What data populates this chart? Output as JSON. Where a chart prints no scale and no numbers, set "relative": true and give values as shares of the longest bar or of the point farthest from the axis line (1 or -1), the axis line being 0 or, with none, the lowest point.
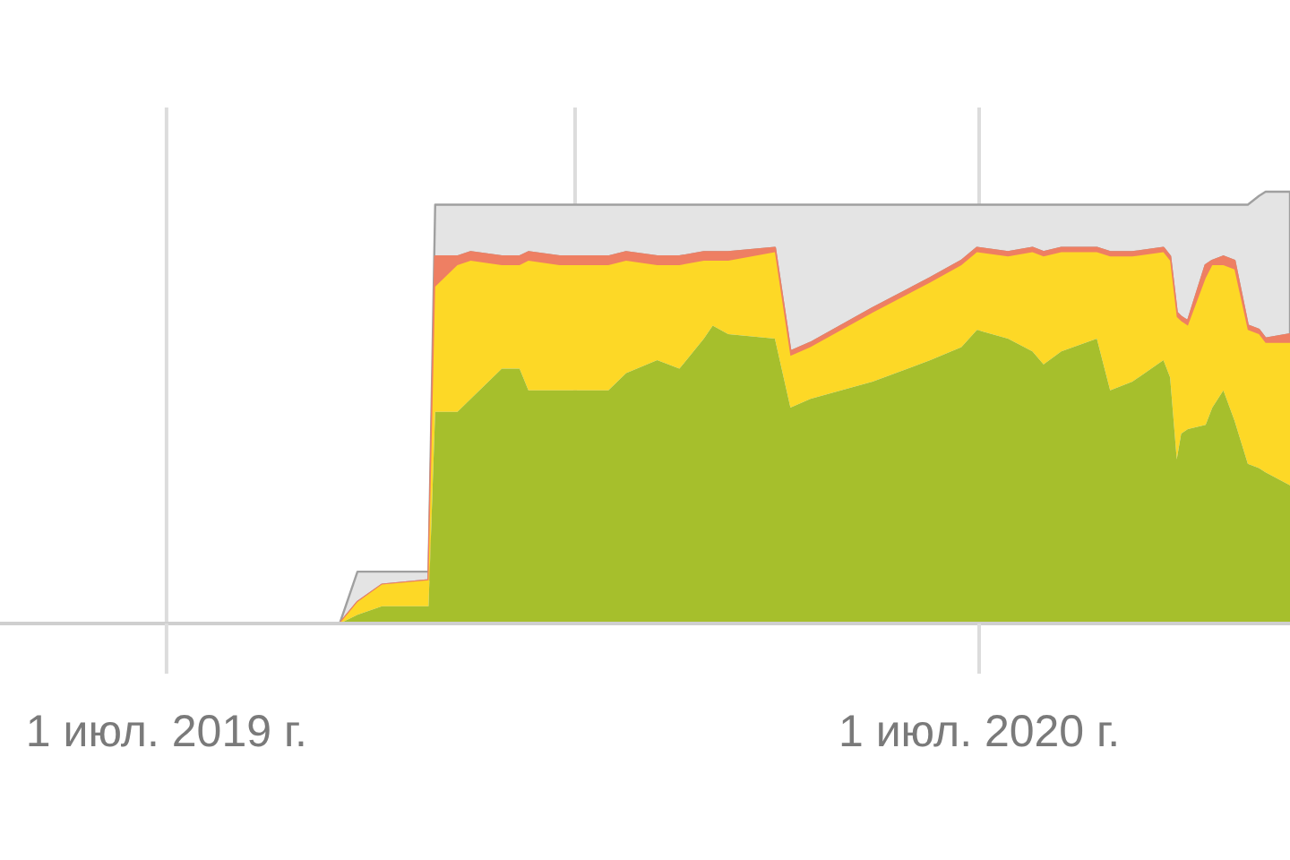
{
  "chart_data": {
    "type": "area",
    "stacked": true,
    "relative": true,
    "grid": "x",
    "x": [
      "2019-09-17",
      "2019-09-25",
      "2019-10-06",
      "2019-10-27",
      "2019-10-30",
      "2019-11-09",
      "2019-11-15",
      "2019-11-29",
      "2019-12-07",
      "2019-12-11",
      "2019-12-25",
      "2020-01-16",
      "2020-01-24",
      "2020-02-07",
      "2020-02-17",
      "2020-02-28",
      "2020-03-03",
      "2020-03-10",
      "2020-03-31",
      "2020-04-07",
      "2020-04-16",
      "2020-05-14",
      "2020-06-09",
      "2020-06-23",
      "2020-06-30",
      "2020-07-14",
      "2020-07-25",
      "2020-07-30",
      "2020-08-07",
      "2020-08-23",
      "2020-08-29",
      "2020-09-08",
      "2020-09-22",
      "2020-09-25",
      "2020-09-28",
      "2020-09-30",
      "2020-10-03",
      "2020-10-11",
      "2020-10-14",
      "2020-10-19",
      "2020-10-24",
      "2020-10-30",
      "2020-11-04",
      "2020-11-07",
      "2020-11-18"
    ],
    "xlim": [
      "2019-04-17",
      "2020-11-18"
    ],
    "xticks": [
      {
        "value": "2019-07-01",
        "label": "1 июл. 2019 г."
      },
      {
        "value": "2020-01-01",
        "label": null
      },
      {
        "value": "2020-07-01",
        "label": "1 июл. 2020 г."
      }
    ],
    "series": [
      {
        "color": "#a6bf2c",
        "values": [
          0,
          0.02,
          0.04,
          0.04,
          0.49,
          0.49,
          0.52,
          0.59,
          0.59,
          0.54,
          0.54,
          0.54,
          0.58,
          0.61,
          0.59,
          0.66,
          0.69,
          0.67,
          0.66,
          0.5,
          0.52,
          0.56,
          0.61,
          0.64,
          0.68,
          0.66,
          0.63,
          0.6,
          0.63,
          0.66,
          0.54,
          0.56,
          0.61,
          0.57,
          0.38,
          0.44,
          0.45,
          0.46,
          0.5,
          0.54,
          0.47,
          0.37,
          0.36,
          0.35,
          0.32
        ]
      },
      {
        "color": "#fdd826",
        "values": [
          0,
          0.03,
          0.05,
          0.06,
          0.29,
          0.34,
          0.32,
          0.24,
          0.24,
          0.3,
          0.29,
          0.29,
          0.26,
          0.22,
          0.24,
          0.18,
          0.15,
          0.17,
          0.2,
          0.12,
          0.12,
          0.16,
          0.18,
          0.19,
          0.18,
          0.19,
          0.23,
          0.25,
          0.23,
          0.2,
          0.31,
          0.29,
          0.25,
          0.27,
          0.33,
          0.26,
          0.24,
          0.34,
          0.33,
          0.29,
          0.35,
          0.31,
          0.31,
          0.3,
          0.33
        ]
      },
      {
        "color": "#ee7f63",
        "values": [
          0,
          0,
          0,
          0,
          0.07,
          0.02,
          0.02,
          0.02,
          0.02,
          0.02,
          0.02,
          0.02,
          0.02,
          0.02,
          0.02,
          0.02,
          0.02,
          0.02,
          0.01,
          0.01,
          0.01,
          0.01,
          0.01,
          0.01,
          0.01,
          0.01,
          0.01,
          0.01,
          0.01,
          0.01,
          0.01,
          0.01,
          0.01,
          0.01,
          0.01,
          0.01,
          0.01,
          0.03,
          0.01,
          0.02,
          0.02,
          0.01,
          0.01,
          0.01,
          0.02
        ]
      },
      {
        "color": "#e4e4e4",
        "values": [
          0,
          0.07,
          0.03,
          0.02,
          0.12,
          0.12,
          0.11,
          0.12,
          0.12,
          0.11,
          0.12,
          0.12,
          0.11,
          0.12,
          0.12,
          0.11,
          0.11,
          0.11,
          0.1,
          0.34,
          0.32,
          0.24,
          0.17,
          0.13,
          0.1,
          0.11,
          0.1,
          0.11,
          0.1,
          0.1,
          0.11,
          0.11,
          0.1,
          0.12,
          0.25,
          0.26,
          0.27,
          0.14,
          0.13,
          0.12,
          0.13,
          0.28,
          0.31,
          0.34,
          0.33
        ]
      }
    ]
  }
}
